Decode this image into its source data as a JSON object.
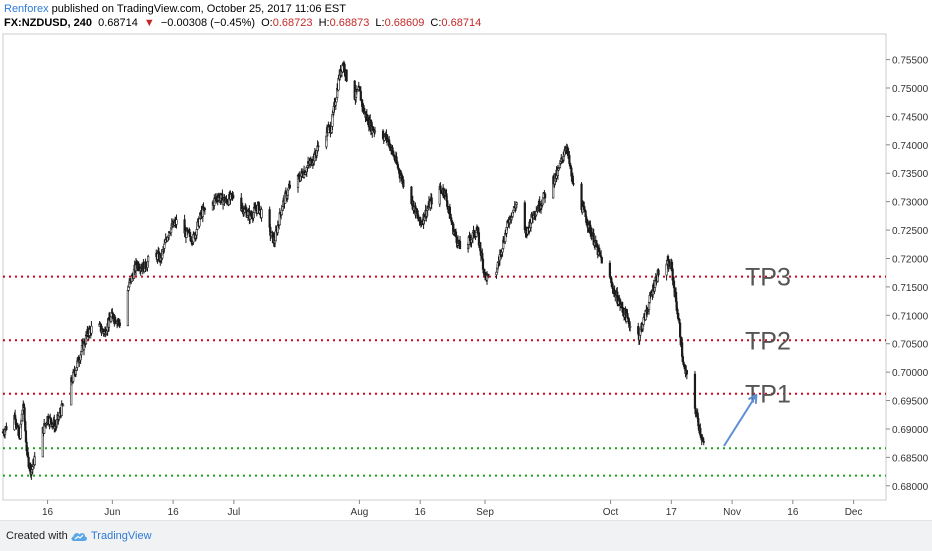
{
  "header": {
    "publisher": "Renforex",
    "published_text": "published on TradingView.com, October 25, 2017 11:06 EST",
    "symbol": "FX:NZDUSD, 240",
    "last": "0.68714",
    "change": "−0.00308 (−0.45%)",
    "o_label": "O:",
    "o": "0.68723",
    "h_label": "H:",
    "h": "0.68873",
    "l_label": "L:",
    "l": "0.68609",
    "c_label": "C:",
    "c": "0.68714"
  },
  "footer": {
    "created_with": "Created with",
    "brand": "TradingView"
  },
  "colors": {
    "candle": "#1a1a1a",
    "level_red": "#d0021b",
    "level_green": "#1aa31a",
    "arrow": "#5b8fd6",
    "tp_text": "#555555",
    "axis_text": "#333333"
  },
  "chart_data": {
    "type": "candlestick",
    "ylim": [
      0.6775,
      0.7595
    ],
    "y_ticks": [
      0.755,
      0.75,
      0.745,
      0.74,
      0.735,
      0.73,
      0.725,
      0.72,
      0.715,
      0.71,
      0.705,
      0.7,
      0.695,
      0.69,
      0.685,
      0.68
    ],
    "y_tick_labels": [
      "0.75500",
      "0.75000",
      "0.74500",
      "0.74000",
      "0.73500",
      "0.73000",
      "0.72500",
      "0.72000",
      "0.71500",
      "0.71000",
      "0.70500",
      "0.70000",
      "0.69500",
      "0.69000",
      "0.68500",
      "0.68000"
    ],
    "x_range": [
      "2017-05-05",
      "2017-12-09"
    ],
    "x_ticks": [
      {
        "date": "2017-05-16",
        "label": "16"
      },
      {
        "date": "2017-06-01",
        "label": "Jun"
      },
      {
        "date": "2017-06-16",
        "label": "16"
      },
      {
        "date": "2017-07-01",
        "label": "Jul"
      },
      {
        "date": "2017-08-01",
        "label": "Aug"
      },
      {
        "date": "2017-08-16",
        "label": "16"
      },
      {
        "date": "2017-09-01",
        "label": "Sep"
      },
      {
        "date": "2017-10-02",
        "label": "Oct"
      },
      {
        "date": "2017-10-17",
        "label": "17"
      },
      {
        "date": "2017-11-01",
        "label": "Nov"
      },
      {
        "date": "2017-11-16",
        "label": "16"
      },
      {
        "date": "2017-12-01",
        "label": "Dec"
      }
    ],
    "price_path": [
      [
        "2017-05-05",
        0.6895
      ],
      [
        "2017-05-08",
        0.6925
      ],
      [
        "2017-05-09",
        0.688
      ],
      [
        "2017-05-10",
        0.6945
      ],
      [
        "2017-05-11",
        0.685
      ],
      [
        "2017-05-12",
        0.6825
      ],
      [
        "2017-05-14",
        0.688
      ],
      [
        "2017-05-16",
        0.692
      ],
      [
        "2017-05-18",
        0.6905
      ],
      [
        "2017-05-20",
        0.6945
      ],
      [
        "2017-05-22",
        0.6985
      ],
      [
        "2017-05-24",
        0.703
      ],
      [
        "2017-05-26",
        0.707
      ],
      [
        "2017-05-28",
        0.7085
      ],
      [
        "2017-05-30",
        0.707
      ],
      [
        "2017-06-01",
        0.71
      ],
      [
        "2017-06-03",
        0.7085
      ],
      [
        "2017-06-05",
        0.715
      ],
      [
        "2017-06-07",
        0.719
      ],
      [
        "2017-06-09",
        0.7185
      ],
      [
        "2017-06-11",
        0.721
      ],
      [
        "2017-06-13",
        0.72
      ],
      [
        "2017-06-15",
        0.725
      ],
      [
        "2017-06-17",
        0.7265
      ],
      [
        "2017-06-19",
        0.7245
      ],
      [
        "2017-06-21",
        0.7235
      ],
      [
        "2017-06-23",
        0.728
      ],
      [
        "2017-06-25",
        0.729
      ],
      [
        "2017-06-27",
        0.731
      ],
      [
        "2017-06-29",
        0.73
      ],
      [
        "2017-07-01",
        0.731
      ],
      [
        "2017-07-03",
        0.729
      ],
      [
        "2017-07-05",
        0.7275
      ],
      [
        "2017-07-07",
        0.729
      ],
      [
        "2017-07-09",
        0.726
      ],
      [
        "2017-07-11",
        0.723
      ],
      [
        "2017-07-13",
        0.7295
      ],
      [
        "2017-07-15",
        0.733
      ],
      [
        "2017-07-17",
        0.734
      ],
      [
        "2017-07-19",
        0.736
      ],
      [
        "2017-07-21",
        0.738
      ],
      [
        "2017-07-23",
        0.742
      ],
      [
        "2017-07-25",
        0.743
      ],
      [
        "2017-07-27",
        0.752
      ],
      [
        "2017-07-28",
        0.7545
      ],
      [
        "2017-07-30",
        0.748
      ],
      [
        "2017-08-01",
        0.7495
      ],
      [
        "2017-08-02",
        0.746
      ],
      [
        "2017-08-04",
        0.743
      ],
      [
        "2017-08-06",
        0.742
      ],
      [
        "2017-08-08",
        0.741
      ],
      [
        "2017-08-10",
        0.737
      ],
      [
        "2017-08-12",
        0.733
      ],
      [
        "2017-08-14",
        0.73
      ],
      [
        "2017-08-16",
        0.726
      ],
      [
        "2017-08-18",
        0.729
      ],
      [
        "2017-08-20",
        0.732
      ],
      [
        "2017-08-22",
        0.732
      ],
      [
        "2017-08-24",
        0.7255
      ],
      [
        "2017-08-26",
        0.7215
      ],
      [
        "2017-08-28",
        0.723
      ],
      [
        "2017-08-30",
        0.725
      ],
      [
        "2017-09-01",
        0.717
      ],
      [
        "2017-09-03",
        0.7155
      ],
      [
        "2017-09-05",
        0.7215
      ],
      [
        "2017-09-07",
        0.727
      ],
      [
        "2017-09-09",
        0.73
      ],
      [
        "2017-09-11",
        0.724
      ],
      [
        "2017-09-13",
        0.728
      ],
      [
        "2017-09-15",
        0.73
      ],
      [
        "2017-09-17",
        0.733
      ],
      [
        "2017-09-19",
        0.735
      ],
      [
        "2017-09-21",
        0.74
      ],
      [
        "2017-09-23",
        0.732
      ],
      [
        "2017-09-25",
        0.729
      ],
      [
        "2017-09-27",
        0.725
      ],
      [
        "2017-09-29",
        0.721
      ],
      [
        "2017-10-01",
        0.718
      ],
      [
        "2017-10-03",
        0.714
      ],
      [
        "2017-10-05",
        0.711
      ],
      [
        "2017-10-07",
        0.708
      ],
      [
        "2017-10-09",
        0.7065
      ],
      [
        "2017-10-11",
        0.711
      ],
      [
        "2017-10-13",
        0.716
      ],
      [
        "2017-10-15",
        0.7195
      ],
      [
        "2017-10-17",
        0.7185
      ],
      [
        "2017-10-19",
        0.708
      ],
      [
        "2017-10-20",
        0.701
      ],
      [
        "2017-10-22",
        0.6965
      ],
      [
        "2017-10-24",
        0.69
      ],
      [
        "2017-10-25",
        0.6871
      ]
    ],
    "levels": [
      {
        "value": 0.7168,
        "color": "red",
        "label": "TP3"
      },
      {
        "value": 0.7056,
        "color": "red",
        "label": "TP2"
      },
      {
        "value": 0.6962,
        "color": "red",
        "label": "TP1"
      },
      {
        "value": 0.6866,
        "color": "green",
        "label": ""
      },
      {
        "value": 0.6818,
        "color": "green",
        "label": ""
      }
    ],
    "annotations": [
      {
        "type": "arrow",
        "from": [
          "2017-10-30",
          0.687
        ],
        "to": [
          "2017-11-07",
          0.696
        ]
      }
    ]
  }
}
